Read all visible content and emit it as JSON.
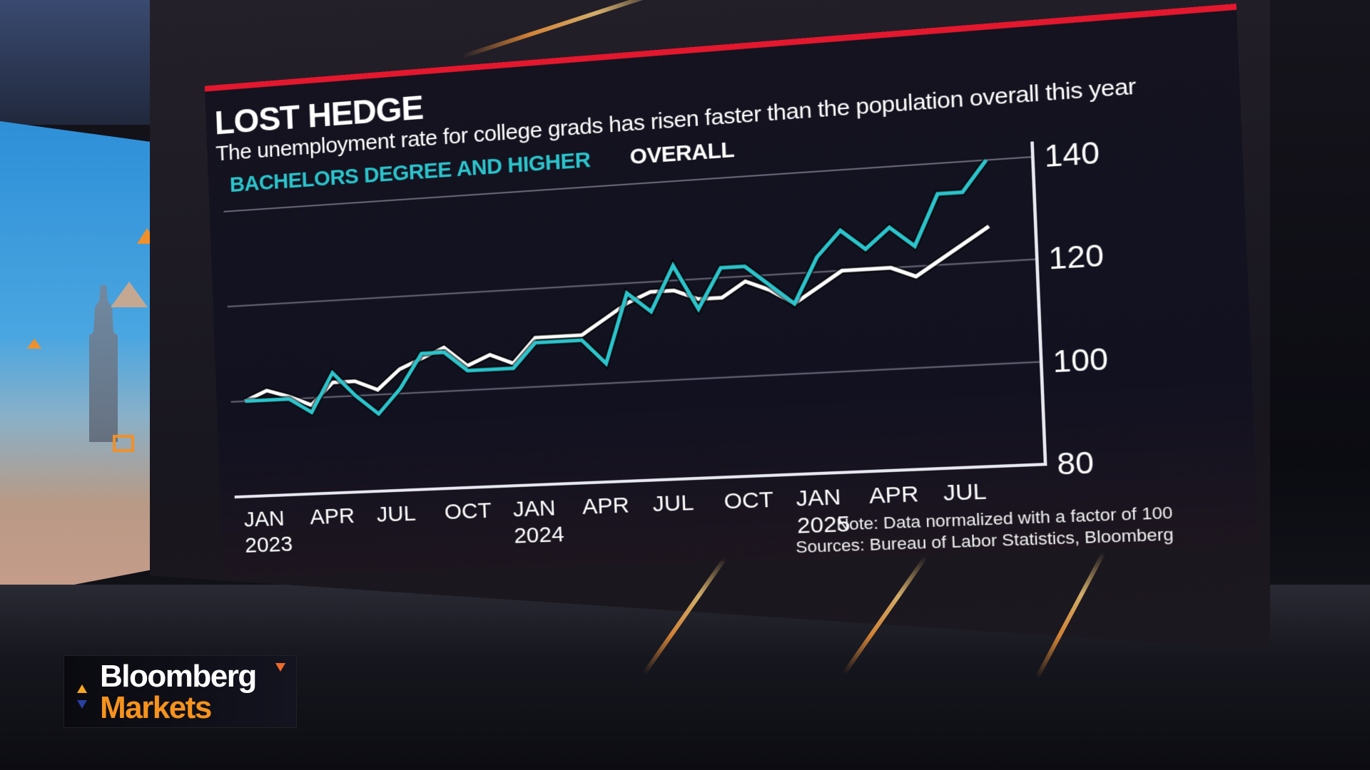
{
  "chart_data": {
    "type": "line",
    "title": "LOST HEDGE",
    "subtitle": "The unemployment rate for college grads has risen faster than the population overall this year",
    "xlabel": "",
    "ylabel": "",
    "ylim": [
      80,
      140
    ],
    "yticks": [
      80,
      100,
      120,
      140
    ],
    "y_axis_position": "right",
    "grid": true,
    "legend_position": "top-left",
    "x_tick_labels": [
      {
        "label": "JAN",
        "sub": "2023",
        "index": 0
      },
      {
        "label": "APR",
        "sub": "",
        "index": 3
      },
      {
        "label": "JUL",
        "sub": "",
        "index": 6
      },
      {
        "label": "OCT",
        "sub": "",
        "index": 9
      },
      {
        "label": "JAN",
        "sub": "2024",
        "index": 12
      },
      {
        "label": "APR",
        "sub": "",
        "index": 15
      },
      {
        "label": "JUL",
        "sub": "",
        "index": 18
      },
      {
        "label": "OCT",
        "sub": "",
        "index": 21
      },
      {
        "label": "JAN",
        "sub": "2025",
        "index": 24
      },
      {
        "label": "APR",
        "sub": "",
        "index": 27
      },
      {
        "label": "JUL",
        "sub": "",
        "index": 30
      }
    ],
    "x": [
      "2023-01",
      "2023-02",
      "2023-03",
      "2023-04",
      "2023-05",
      "2023-06",
      "2023-07",
      "2023-08",
      "2023-09",
      "2023-10",
      "2023-11",
      "2023-12",
      "2024-01",
      "2024-02",
      "2024-03",
      "2024-04",
      "2024-05",
      "2024-06",
      "2024-07",
      "2024-08",
      "2024-09",
      "2024-10",
      "2024-11",
      "2024-12",
      "2025-01",
      "2025-02",
      "2025-03",
      "2025-04",
      "2025-05",
      "2025-06",
      "2025-07",
      "2025-08",
      "2025-09"
    ],
    "series": [
      {
        "name": "BACHELORS DEGREE AND HIGHER",
        "color": "#2bc4cc",
        "values": [
          100,
          100,
          100,
          97,
          105,
          100,
          96,
          101,
          108,
          108,
          104,
          104,
          104,
          109,
          109,
          109,
          104,
          118,
          114,
          123,
          114,
          122,
          122,
          118,
          114,
          123,
          128,
          124,
          128,
          124,
          134,
          134,
          140
        ]
      },
      {
        "name": "OVERALL",
        "color": "#ffffff",
        "values": [
          100,
          102,
          100.5,
          98.5,
          103,
          103,
          101,
          105,
          107,
          109,
          105,
          107,
          105,
          110,
          110,
          110,
          113,
          116,
          118,
          118,
          116,
          116,
          119,
          117,
          114,
          117,
          120,
          120,
          120,
          118,
          121,
          124,
          127
        ]
      }
    ],
    "note": "Note: Data normalized with a factor of 100",
    "sources": "Sources: Bureau of Labor Statistics, Bloomberg"
  },
  "panel": {
    "title": "LOST HEDGE",
    "subtitle": "The unemployment rate for college grads has risen faster than the population overall this year",
    "legend": [
      "BACHELORS DEGREE AND HIGHER",
      "OVERALL"
    ],
    "note": "Note: Data normalized with a factor of 100",
    "sources": "Sources: Bureau of Labor Statistics, Bloomberg",
    "accent_color": "#e3172d"
  },
  "logo": {
    "line1": "Bloomberg",
    "line2": "Markets",
    "line1_color": "#ffffff",
    "line2_color": "#f5931e"
  }
}
